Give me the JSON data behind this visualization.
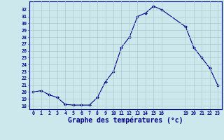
{
  "x": [
    0,
    1,
    2,
    3,
    4,
    5,
    6,
    7,
    8,
    9,
    10,
    11,
    12,
    13,
    14,
    15,
    16,
    19,
    20,
    21,
    22,
    23
  ],
  "y": [
    20.0,
    20.2,
    19.6,
    19.2,
    18.2,
    18.1,
    18.1,
    18.1,
    19.2,
    21.5,
    23.0,
    26.5,
    28.0,
    31.0,
    31.5,
    32.5,
    32.0,
    29.5,
    26.5,
    25.0,
    23.5,
    21.0
  ],
  "line_color": "#00008b",
  "marker_color": "#00008b",
  "bg_color": "#cce8ec",
  "grid_color": "#aacccc",
  "axis_color": "#00008b",
  "xlabel": "Graphe des températures (°c)",
  "xlabel_fontsize": 7,
  "ytick_min": 18,
  "ytick_max": 32,
  "ylim": [
    17.5,
    33.2
  ],
  "xlim": [
    -0.5,
    23.5
  ]
}
